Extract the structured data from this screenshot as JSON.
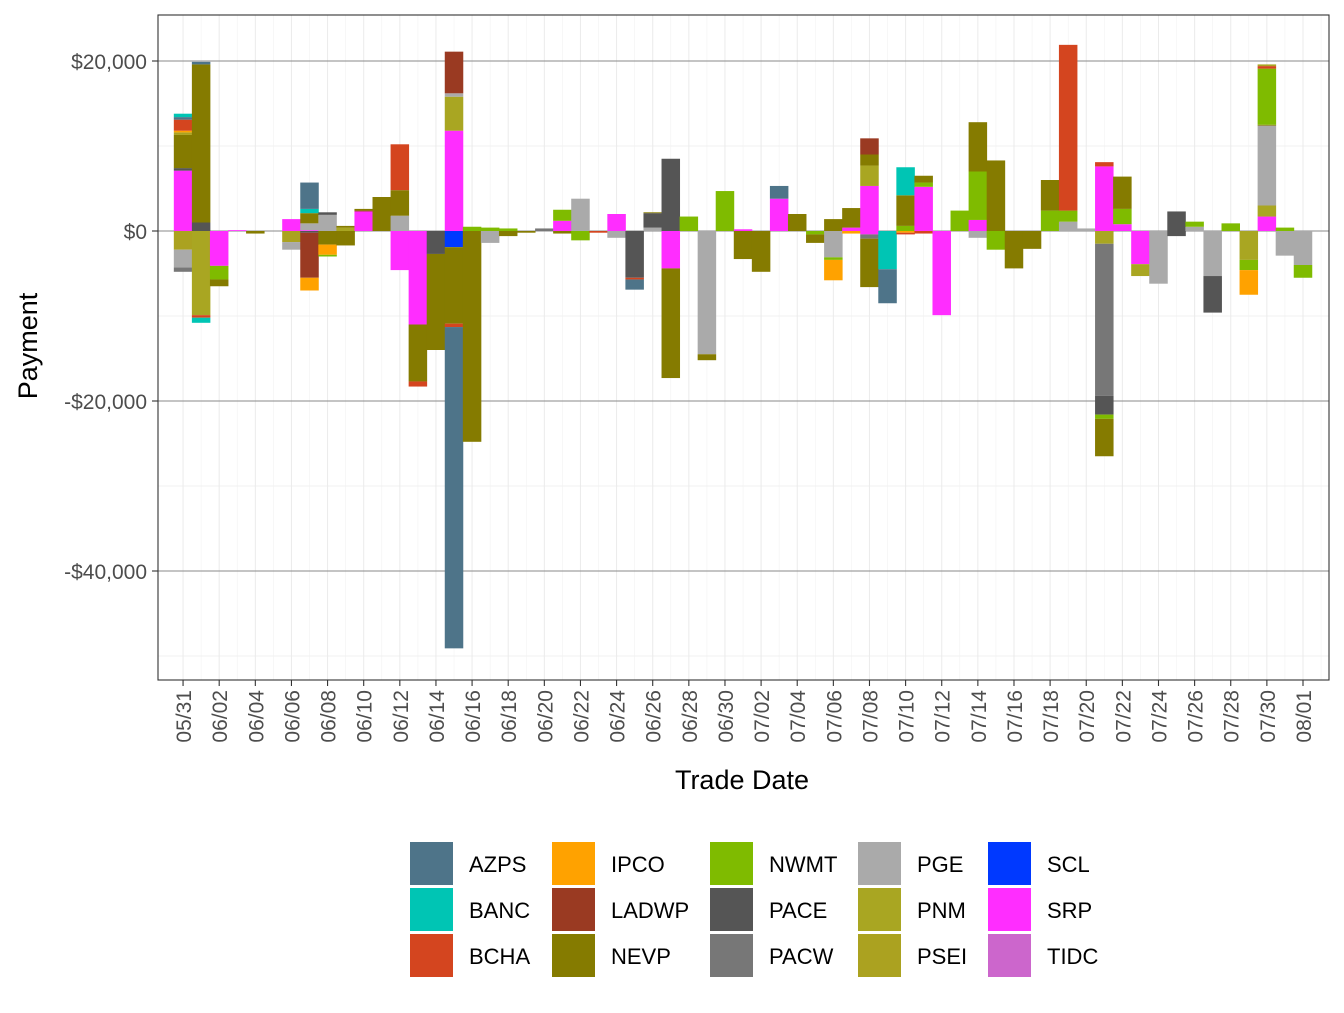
{
  "chart_data": {
    "type": "bar",
    "stacked": true,
    "xlabel": "Trade Date",
    "ylabel": "Payment",
    "ylim": [
      -49500,
      25500
    ],
    "yticks": [
      -40000,
      -20000,
      0,
      20000
    ],
    "ytick_labels": [
      "-$40,000",
      "-$20,000",
      "$0",
      "$20,000"
    ],
    "x_date_range": [
      "2024-05-30",
      "2024-08-01"
    ],
    "xtick_dates": [
      "2024-05-31",
      "2024-06-02",
      "2024-06-04",
      "2024-06-06",
      "2024-06-08",
      "2024-06-10",
      "2024-06-12",
      "2024-06-14",
      "2024-06-16",
      "2024-06-18",
      "2024-06-20",
      "2024-06-22",
      "2024-06-24",
      "2024-06-26",
      "2024-06-28",
      "2024-06-30",
      "2024-07-02",
      "2024-07-04",
      "2024-07-06",
      "2024-07-08",
      "2024-07-10",
      "2024-07-12",
      "2024-07-14",
      "2024-07-16",
      "2024-07-18",
      "2024-07-20",
      "2024-07-22",
      "2024-07-24",
      "2024-07-26",
      "2024-07-28",
      "2024-07-30",
      "2024-08-01"
    ],
    "xtick_labels": [
      "05/31",
      "06/02",
      "06/04",
      "06/06",
      "06/08",
      "06/10",
      "06/12",
      "06/14",
      "06/16",
      "06/18",
      "06/20",
      "06/22",
      "06/24",
      "06/26",
      "06/28",
      "06/30",
      "07/02",
      "07/04",
      "07/06",
      "07/08",
      "07/10",
      "07/12",
      "07/14",
      "07/16",
      "07/18",
      "07/20",
      "07/22",
      "07/24",
      "07/26",
      "07/28",
      "07/30",
      "08/01"
    ],
    "grid": true,
    "legend_position": "bottom",
    "series": [
      {
        "name": "AZPS",
        "color": "#4e7489"
      },
      {
        "name": "BANC",
        "color": "#00c5b4"
      },
      {
        "name": "BCHA",
        "color": "#d4451f"
      },
      {
        "name": "IPCO",
        "color": "#ffa200"
      },
      {
        "name": "LADWP",
        "color": "#9a3a22"
      },
      {
        "name": "NEVP",
        "color": "#857b00"
      },
      {
        "name": "NWMT",
        "color": "#7fbb00"
      },
      {
        "name": "PACE",
        "color": "#555555"
      },
      {
        "name": "PACW",
        "color": "#777777"
      },
      {
        "name": "PGE",
        "color": "#aaaaaa"
      },
      {
        "name": "PNM",
        "color": "#a9a622"
      },
      {
        "name": "PSEI",
        "color": "#aba220"
      },
      {
        "name": "SCL",
        "color": "#0039ff"
      },
      {
        "name": "SRP",
        "color": "#ff2dff"
      },
      {
        "name": "TIDC",
        "color": "#cc66cc"
      }
    ],
    "bars": [
      {
        "date": "2024-05-31",
        "segments": [
          [
            "SRP",
            7100
          ],
          [
            "PACE",
            300
          ],
          [
            "NEVP",
            3900
          ],
          [
            "PSEI",
            300
          ],
          [
            "IPCO",
            200
          ],
          [
            "BCHA",
            1300
          ],
          [
            "AZPS",
            300
          ],
          [
            "BANC",
            400
          ],
          [
            "PSEI",
            -2200
          ],
          [
            "PGE",
            -2100
          ],
          [
            "PACW",
            -500
          ]
        ]
      },
      {
        "date": "2024-06-01",
        "segments": [
          [
            "PACE",
            1000
          ],
          [
            "NEVP",
            18600
          ],
          [
            "AZPS",
            300
          ],
          [
            "PNM",
            -9900
          ],
          [
            "BCHA",
            -300
          ],
          [
            "BANC",
            -600
          ]
        ]
      },
      {
        "date": "2024-06-02",
        "segments": [
          [
            "SRP",
            -4100
          ],
          [
            "NWMT",
            -1600
          ],
          [
            "NEVP",
            -800
          ]
        ]
      },
      {
        "date": "2024-06-03",
        "segments": [
          [
            "SRP",
            100
          ]
        ]
      },
      {
        "date": "2024-06-04",
        "segments": [
          [
            "NEVP",
            -300
          ]
        ]
      },
      {
        "date": "2024-06-06",
        "segments": [
          [
            "SRP",
            1400
          ],
          [
            "PSEI",
            -1300
          ],
          [
            "PGE",
            -900
          ]
        ]
      },
      {
        "date": "2024-06-07",
        "segments": [
          [
            "SRP",
            100
          ],
          [
            "PGE",
            800
          ],
          [
            "NEVP",
            1200
          ],
          [
            "BANC",
            500
          ],
          [
            "AZPS",
            3100
          ],
          [
            "PACE",
            -200
          ],
          [
            "LADWP",
            -5300
          ],
          [
            "IPCO",
            -1500
          ]
        ]
      },
      {
        "date": "2024-06-08",
        "segments": [
          [
            "PGE",
            1900
          ],
          [
            "PACE",
            300
          ],
          [
            "NEVP",
            -1600
          ],
          [
            "IPCO",
            -1200
          ],
          [
            "NWMT",
            -200
          ]
        ]
      },
      {
        "date": "2024-06-09",
        "segments": [
          [
            "PNM",
            400
          ],
          [
            "NEVP",
            200
          ],
          [
            "NEVP",
            -1700
          ]
        ]
      },
      {
        "date": "2024-06-10",
        "segments": [
          [
            "SRP",
            2300
          ],
          [
            "LADWP",
            100
          ],
          [
            "NEVP",
            200
          ]
        ]
      },
      {
        "date": "2024-06-11",
        "segments": [
          [
            "NEVP",
            4000
          ]
        ]
      },
      {
        "date": "2024-06-12",
        "segments": [
          [
            "PGE",
            1800
          ],
          [
            "NEVP",
            3000
          ],
          [
            "BCHA",
            5400
          ],
          [
            "SRP",
            -4600
          ]
        ]
      },
      {
        "date": "2024-06-13",
        "segments": [
          [
            "SRP",
            -11000
          ],
          [
            "NEVP",
            -6700
          ],
          [
            "BCHA",
            -600
          ]
        ]
      },
      {
        "date": "2024-06-14",
        "segments": [
          [
            "PACE",
            -2700
          ],
          [
            "NEVP",
            -11300
          ]
        ]
      },
      {
        "date": "2024-06-15",
        "segments": [
          [
            "SRP",
            11800
          ],
          [
            "PNM",
            4000
          ],
          [
            "PGE",
            400
          ],
          [
            "LADWP",
            4900
          ],
          [
            "SCL",
            -1900
          ],
          [
            "NEVP",
            -9000
          ],
          [
            "BCHA",
            -400
          ],
          [
            "AZPS",
            -37800
          ]
        ]
      },
      {
        "date": "2024-06-16",
        "segments": [
          [
            "NWMT",
            500
          ],
          [
            "NEVP",
            -24800
          ]
        ]
      },
      {
        "date": "2024-06-17",
        "segments": [
          [
            "NWMT",
            400
          ],
          [
            "PGE",
            -1400
          ]
        ]
      },
      {
        "date": "2024-06-18",
        "segments": [
          [
            "NWMT",
            300
          ],
          [
            "NEVP",
            -600
          ]
        ]
      },
      {
        "date": "2024-06-19",
        "segments": [
          [
            "NEVP",
            -200
          ]
        ]
      },
      {
        "date": "2024-06-20",
        "segments": [
          [
            "PACW",
            300
          ]
        ]
      },
      {
        "date": "2024-06-21",
        "segments": [
          [
            "SRP",
            1200
          ],
          [
            "NWMT",
            1300
          ],
          [
            "NEVP",
            -300
          ]
        ]
      },
      {
        "date": "2024-06-22",
        "segments": [
          [
            "PGE",
            3800
          ],
          [
            "NWMT",
            -1100
          ]
        ]
      },
      {
        "date": "2024-06-23",
        "segments": [
          [
            "BCHA",
            -200
          ]
        ]
      },
      {
        "date": "2024-06-24",
        "segments": [
          [
            "SRP",
            2000
          ],
          [
            "PGE",
            -800
          ]
        ]
      },
      {
        "date": "2024-06-25",
        "segments": [
          [
            "PACE",
            -5500
          ],
          [
            "BCHA",
            -200
          ],
          [
            "AZPS",
            -1200
          ]
        ]
      },
      {
        "date": "2024-06-26",
        "segments": [
          [
            "PGE",
            400
          ],
          [
            "PACE",
            1700
          ],
          [
            "NEVP",
            100
          ]
        ]
      },
      {
        "date": "2024-06-27",
        "segments": [
          [
            "PACE",
            8500
          ],
          [
            "SRP",
            -4400
          ],
          [
            "NEVP",
            -12900
          ]
        ]
      },
      {
        "date": "2024-06-28",
        "segments": [
          [
            "NWMT",
            1700
          ]
        ]
      },
      {
        "date": "2024-06-29",
        "segments": [
          [
            "PGE",
            -14500
          ],
          [
            "NEVP",
            -700
          ]
        ]
      },
      {
        "date": "2024-06-30",
        "segments": [
          [
            "NWMT",
            4700
          ]
        ]
      },
      {
        "date": "2024-07-01",
        "segments": [
          [
            "SRP",
            200
          ],
          [
            "NEVP",
            -3300
          ]
        ]
      },
      {
        "date": "2024-07-02",
        "segments": [
          [
            "NEVP",
            -4800
          ]
        ]
      },
      {
        "date": "2024-07-03",
        "segments": [
          [
            "SRP",
            3800
          ],
          [
            "AZPS",
            1500
          ]
        ]
      },
      {
        "date": "2024-07-04",
        "segments": [
          [
            "NEVP",
            2000
          ]
        ]
      },
      {
        "date": "2024-07-05",
        "segments": [
          [
            "NWMT",
            -400
          ],
          [
            "NEVP",
            -1000
          ]
        ]
      },
      {
        "date": "2024-07-06",
        "segments": [
          [
            "NEVP",
            1400
          ],
          [
            "PGE",
            -3100
          ],
          [
            "NWMT",
            -300
          ],
          [
            "IPCO",
            -2400
          ]
        ]
      },
      {
        "date": "2024-07-07",
        "segments": [
          [
            "SRP",
            400
          ],
          [
            "NEVP",
            2300
          ],
          [
            "IPCO",
            -300
          ]
        ]
      },
      {
        "date": "2024-07-08",
        "segments": [
          [
            "SRP",
            5300
          ],
          [
            "PNM",
            2400
          ],
          [
            "NEVP",
            1300
          ],
          [
            "LADWP",
            1900
          ],
          [
            "SRP",
            -400
          ],
          [
            "PACW",
            -500
          ],
          [
            "NEVP",
            -5700
          ]
        ]
      },
      {
        "date": "2024-07-09",
        "segments": [
          [
            "BANC",
            -4500
          ],
          [
            "AZPS",
            -4000
          ]
        ]
      },
      {
        "date": "2024-07-10",
        "segments": [
          [
            "NWMT",
            600
          ],
          [
            "NEVP",
            3600
          ],
          [
            "BANC",
            3300
          ],
          [
            "IPCO",
            -200
          ],
          [
            "BCHA",
            -200
          ]
        ]
      },
      {
        "date": "2024-07-11",
        "segments": [
          [
            "SRP",
            5200
          ],
          [
            "NWMT",
            500
          ],
          [
            "NEVP",
            800
          ],
          [
            "BCHA",
            -300
          ]
        ]
      },
      {
        "date": "2024-07-12",
        "segments": [
          [
            "SRP",
            -9900
          ]
        ]
      },
      {
        "date": "2024-07-13",
        "segments": [
          [
            "NWMT",
            2400
          ]
        ]
      },
      {
        "date": "2024-07-14",
        "segments": [
          [
            "SRP",
            1300
          ],
          [
            "NWMT",
            5700
          ],
          [
            "NEVP",
            5800
          ],
          [
            "PGE",
            -800
          ]
        ]
      },
      {
        "date": "2024-07-15",
        "segments": [
          [
            "NEVP",
            8300
          ],
          [
            "NWMT",
            -2200
          ]
        ]
      },
      {
        "date": "2024-07-16",
        "segments": [
          [
            "NEVP",
            -4400
          ]
        ]
      },
      {
        "date": "2024-07-17",
        "segments": [
          [
            "NEVP",
            -2100
          ]
        ]
      },
      {
        "date": "2024-07-18",
        "segments": [
          [
            "NWMT",
            2400
          ],
          [
            "NEVP",
            3600
          ]
        ]
      },
      {
        "date": "2024-07-19",
        "segments": [
          [
            "PGE",
            1100
          ],
          [
            "NWMT",
            1300
          ],
          [
            "BCHA",
            19500
          ]
        ]
      },
      {
        "date": "2024-07-20",
        "segments": [
          [
            "PGE",
            300
          ]
        ]
      },
      {
        "date": "2024-07-21",
        "segments": [
          [
            "SRP",
            7600
          ],
          [
            "BCHA",
            500
          ],
          [
            "PNM",
            -1500
          ],
          [
            "PACW",
            -17900
          ],
          [
            "PACE",
            -2200
          ],
          [
            "NWMT",
            -500
          ],
          [
            "NEVP",
            -4400
          ]
        ]
      },
      {
        "date": "2024-07-22",
        "segments": [
          [
            "SRP",
            800
          ],
          [
            "NWMT",
            1800
          ],
          [
            "NEVP",
            3800
          ]
        ]
      },
      {
        "date": "2024-07-23",
        "segments": [
          [
            "SRP",
            -3900
          ],
          [
            "PNM",
            -1400
          ]
        ]
      },
      {
        "date": "2024-07-24",
        "segments": [
          [
            "PGE",
            -6200
          ]
        ]
      },
      {
        "date": "2024-07-25",
        "segments": [
          [
            "PACE",
            2300
          ],
          [
            "PACE",
            -600
          ]
        ]
      },
      {
        "date": "2024-07-26",
        "segments": [
          [
            "PGE",
            500
          ],
          [
            "NWMT",
            600
          ]
        ]
      },
      {
        "date": "2024-07-27",
        "segments": [
          [
            "PGE",
            -5300
          ],
          [
            "PACE",
            -4300
          ]
        ]
      },
      {
        "date": "2024-07-28",
        "segments": [
          [
            "NWMT",
            900
          ]
        ]
      },
      {
        "date": "2024-07-29",
        "segments": [
          [
            "PNM",
            -3400
          ],
          [
            "NWMT",
            -1200
          ],
          [
            "IPCO",
            -2900
          ]
        ]
      },
      {
        "date": "2024-07-30",
        "segments": [
          [
            "SRP",
            1700
          ],
          [
            "PNM",
            1300
          ],
          [
            "PGE",
            9400
          ],
          [
            "NEVP",
            100
          ],
          [
            "NWMT",
            6600
          ],
          [
            "BCHA",
            300
          ],
          [
            "PNM",
            200
          ]
        ]
      },
      {
        "date": "2024-07-31",
        "segments": [
          [
            "NWMT",
            400
          ],
          [
            "PGE",
            -2900
          ]
        ]
      },
      {
        "date": "2024-08-01",
        "segments": [
          [
            "PGE",
            -4000
          ],
          [
            "NWMT",
            -1500
          ]
        ]
      }
    ]
  }
}
